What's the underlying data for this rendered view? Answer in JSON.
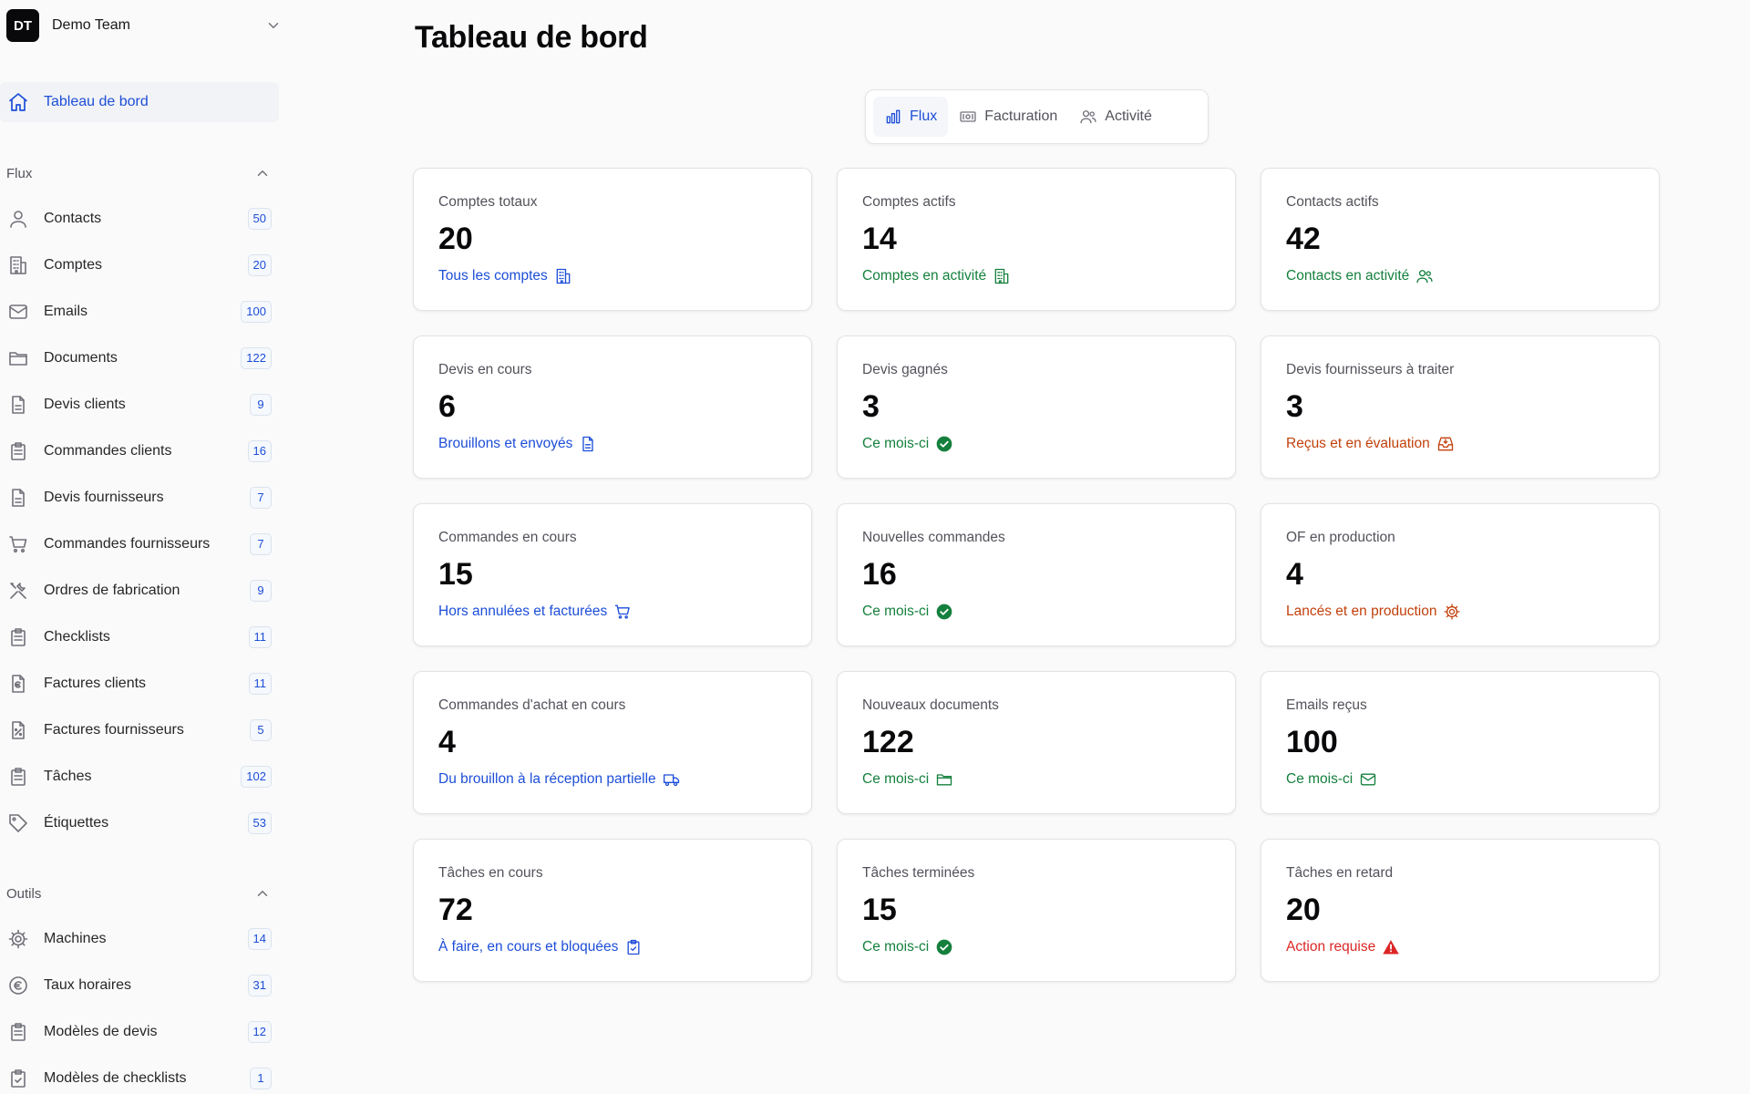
{
  "team": {
    "initials": "DT",
    "name": "Demo Team"
  },
  "home": {
    "label": "Tableau de bord"
  },
  "sections": {
    "flux": {
      "label": "Flux",
      "items": [
        {
          "label": "Contacts",
          "count": "50"
        },
        {
          "label": "Comptes",
          "count": "20"
        },
        {
          "label": "Emails",
          "count": "100"
        },
        {
          "label": "Documents",
          "count": "122"
        },
        {
          "label": "Devis clients",
          "count": "9"
        },
        {
          "label": "Commandes clients",
          "count": "16"
        },
        {
          "label": "Devis fournisseurs",
          "count": "7"
        },
        {
          "label": "Commandes fournisseurs",
          "count": "7"
        },
        {
          "label": "Ordres de fabrication",
          "count": "9"
        },
        {
          "label": "Checklists",
          "count": "11"
        },
        {
          "label": "Factures clients",
          "count": "11"
        },
        {
          "label": "Factures fournisseurs",
          "count": "5"
        },
        {
          "label": "Tâches",
          "count": "102"
        },
        {
          "label": "Étiquettes",
          "count": "53"
        }
      ]
    },
    "outils": {
      "label": "Outils",
      "items": [
        {
          "label": "Machines",
          "count": "14"
        },
        {
          "label": "Taux horaires",
          "count": "31"
        },
        {
          "label": "Modèles de devis",
          "count": "12"
        },
        {
          "label": "Modèles de checklists",
          "count": "1"
        }
      ]
    }
  },
  "page": {
    "title": "Tableau de bord"
  },
  "tabs": [
    {
      "label": "Flux",
      "icon": "bar-chart-icon",
      "active": true
    },
    {
      "label": "Facturation",
      "icon": "banknote-icon",
      "active": false
    },
    {
      "label": "Activité",
      "icon": "users-icon",
      "active": false
    }
  ],
  "cards": [
    {
      "title": "Comptes totaux",
      "value": "20",
      "subtitle": "Tous les comptes",
      "color": "#1d4ed8",
      "icon": "building-icon"
    },
    {
      "title": "Comptes actifs",
      "value": "14",
      "subtitle": "Comptes en activité",
      "color": "#15803d",
      "icon": "building-icon"
    },
    {
      "title": "Contacts actifs",
      "value": "42",
      "subtitle": "Contacts en activité",
      "color": "#15803d",
      "icon": "users-icon"
    },
    {
      "title": "Devis en cours",
      "value": "6",
      "subtitle": "Brouillons et envoyés",
      "color": "#1d4ed8",
      "icon": "file-icon"
    },
    {
      "title": "Devis gagnés",
      "value": "3",
      "subtitle": "Ce mois-ci",
      "color": "#15803d",
      "icon": "check-circle-icon"
    },
    {
      "title": "Devis fournisseurs à traiter",
      "value": "3",
      "subtitle": "Reçus et en évaluation",
      "color": "#c2410c",
      "icon": "inbox-icon"
    },
    {
      "title": "Commandes en cours",
      "value": "15",
      "subtitle": "Hors annulées et facturées",
      "color": "#1d4ed8",
      "icon": "cart-icon"
    },
    {
      "title": "Nouvelles commandes",
      "value": "16",
      "subtitle": "Ce mois-ci",
      "color": "#15803d",
      "icon": "check-circle-icon"
    },
    {
      "title": "OF en production",
      "value": "4",
      "subtitle": "Lancés et en production",
      "color": "#c2410c",
      "icon": "gear-icon"
    },
    {
      "title": "Commandes d'achat en cours",
      "value": "4",
      "subtitle": "Du brouillon à la réception partielle",
      "color": "#1d4ed8",
      "icon": "truck-icon"
    },
    {
      "title": "Nouveaux documents",
      "value": "122",
      "subtitle": "Ce mois-ci",
      "color": "#15803d",
      "icon": "folder-icon"
    },
    {
      "title": "Emails reçus",
      "value": "100",
      "subtitle": "Ce mois-ci",
      "color": "#15803d",
      "icon": "mail-icon"
    },
    {
      "title": "Tâches en cours",
      "value": "72",
      "subtitle": "À faire, en cours et bloquées",
      "color": "#1d4ed8",
      "icon": "clipboard-check-icon"
    },
    {
      "title": "Tâches terminées",
      "value": "15",
      "subtitle": "Ce mois-ci",
      "color": "#15803d",
      "icon": "check-circle-icon"
    },
    {
      "title": "Tâches en retard",
      "value": "20",
      "subtitle": "Action requise",
      "color": "#dc2626",
      "icon": "alert-triangle-icon"
    }
  ]
}
